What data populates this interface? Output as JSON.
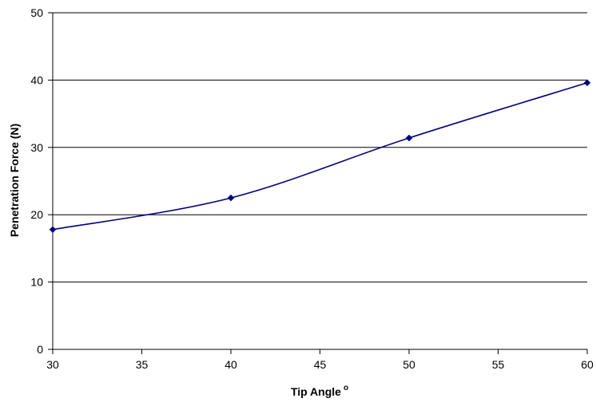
{
  "chart_data": {
    "type": "line",
    "title": "",
    "xlabel": "Tip Angle",
    "xlabel_superscript": "o",
    "ylabel": "Penetration Force (N)",
    "xlim": [
      30,
      60
    ],
    "ylim": [
      0,
      50
    ],
    "x_ticks": [
      30,
      35,
      40,
      45,
      50,
      55,
      60
    ],
    "y_ticks": [
      0,
      10,
      20,
      30,
      40,
      50
    ],
    "grid": "horizontal",
    "legend": "none",
    "colors": {
      "line": "#000080",
      "marker": "#000080",
      "grid": "#000000",
      "axis": "#000000"
    },
    "series": [
      {
        "x": [
          30,
          40,
          50,
          60
        ],
        "values": [
          17.8,
          22.5,
          31.4,
          39.6
        ]
      }
    ]
  }
}
